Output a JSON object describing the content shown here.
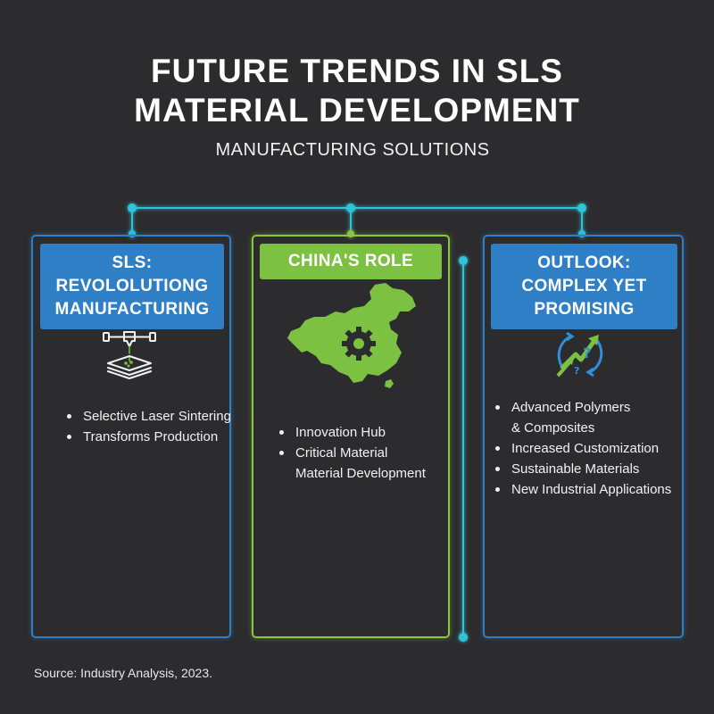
{
  "title": {
    "line1": "FUTURE TRENDS IN SLS",
    "line2": "MATERIAL DEVELOPMENT"
  },
  "subtitle": "MANUFACTURING SOLUTIONS",
  "panels": [
    {
      "header_lines": [
        "SLS:",
        "REVOLOLUTIONG",
        "MANUFACTURING"
      ],
      "icon": "sls-printer-icon",
      "accent": "#2f7fc6",
      "bullets": [
        "Selective Laser Sintering",
        "Transforms Production"
      ]
    },
    {
      "header_lines": [
        "CHINA'S ROLE"
      ],
      "icon": "china-map-gear-icon",
      "accent": "#8cc63f",
      "bullets": [
        "Innovation Hub",
        "Critical Material",
        "Material Development"
      ]
    },
    {
      "header_lines": [
        "OUTLOOK:",
        "COMPLEX YET",
        "PROMISING"
      ],
      "icon": "growth-arrows-question-icon",
      "accent": "#2f7fc6",
      "bullets": [
        "Advanced Polymers",
        "& Composites",
        "Increased Customization",
        "Sustainable Materials",
        "New Industrial Applications"
      ]
    }
  ],
  "connector_color": "#2fc4d8",
  "source": "Source: Industry Analysis, 2023."
}
